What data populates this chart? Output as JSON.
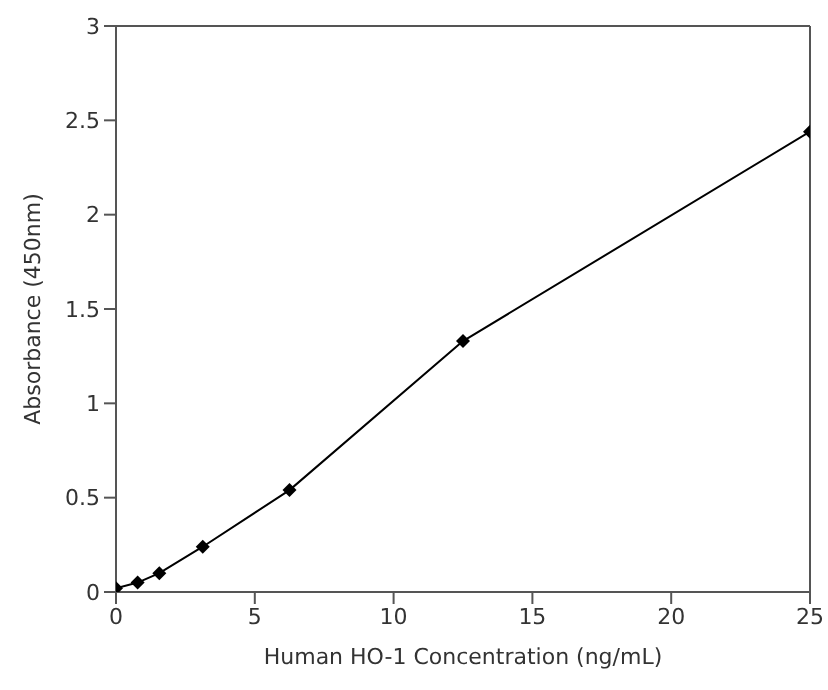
{
  "chart_data": {
    "type": "line",
    "xlabel": "Human HO-1 Concentration (ng/mL)",
    "ylabel": "Absorbance (450nm)",
    "x": [
      0,
      0.78,
      1.56,
      3.125,
      6.25,
      12.5,
      25
    ],
    "series": [
      {
        "color": "#000000",
        "values": [
          0.02,
          0.05,
          0.1,
          0.24,
          0.54,
          1.33,
          2.44
        ]
      }
    ],
    "xlim": [
      0,
      25
    ],
    "xticks": [
      0,
      5,
      10,
      15,
      20,
      25
    ],
    "ylim": [
      0,
      3
    ],
    "yticks": [
      0,
      0.5,
      1,
      1.5,
      2,
      2.5,
      3
    ],
    "marker": "diamond",
    "line_style": "solid",
    "grid": false,
    "legend": false
  }
}
